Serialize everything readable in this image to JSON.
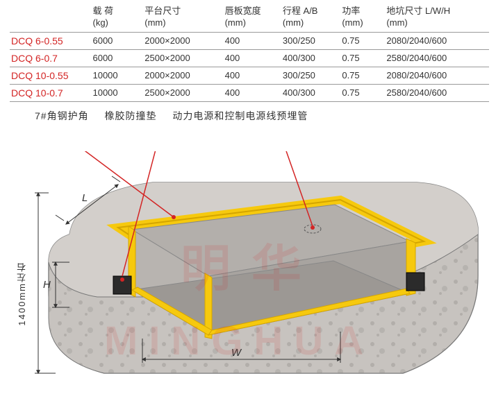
{
  "table": {
    "columns": [
      {
        "l1": "",
        "l2": ""
      },
      {
        "l1": "载 荷",
        "l2": "(kg)"
      },
      {
        "l1": "平台尺寸",
        "l2": "(mm)"
      },
      {
        "l1": "唇板宽度",
        "l2": "(mm)"
      },
      {
        "l1": "行程 A/B",
        "l2": "(mm)"
      },
      {
        "l1": "功率",
        "l2": "(mm)"
      },
      {
        "l1": "地坑尺寸 L/W/H",
        "l2": "(mm)"
      }
    ],
    "rows": [
      {
        "model": "DCQ 6-0.55",
        "load": "6000",
        "platform": "2000×2000",
        "lip": "400",
        "stroke": "300/250",
        "power": "0.75",
        "pit": "2080/2040/600"
      },
      {
        "model": "DCQ 6-0.7",
        "load": "6000",
        "platform": "2500×2000",
        "lip": "400",
        "stroke": "400/300",
        "power": "0.75",
        "pit": "2580/2040/600"
      },
      {
        "model": "DCQ 10-0.55",
        "load": "10000",
        "platform": "2000×2000",
        "lip": "400",
        "stroke": "300/250",
        "power": "0.75",
        "pit": "2080/2040/600"
      },
      {
        "model": "DCQ 10-0.7",
        "load": "10000",
        "platform": "2500×2000",
        "lip": "400",
        "stroke": "400/300",
        "power": "0.75",
        "pit": "2580/2040/600"
      }
    ]
  },
  "labels": {
    "a": "7#角钢护角",
    "b": "橡胶防撞垫",
    "c": "动力电源和控制电源线预埋管"
  },
  "dims": {
    "L": "L",
    "H": "H",
    "W": "W",
    "height": "1400mm左右"
  },
  "colors": {
    "angle": "#f6c90e",
    "angle_stroke": "#d4a500",
    "concrete": "#c7c3bf",
    "concrete_dark": "#9e9a96",
    "bumper": "#2b2b2b",
    "pit_floor": "#b3afab",
    "model": "#d32424",
    "leader": "#d32424",
    "dim": "#333333"
  },
  "watermark": {
    "cn": "明华",
    "en": "MINGHUA"
  }
}
